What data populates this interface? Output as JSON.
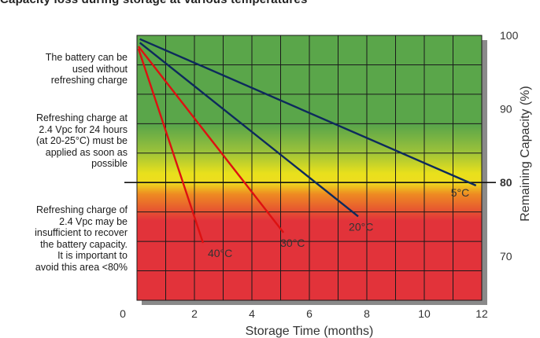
{
  "chart_data": {
    "type": "line",
    "title": "Capacity loss during storage at various temperatures",
    "xlabel": "Storage Time (months)",
    "ylabel": "Remaining Capacity (%)",
    "xlim": [
      0,
      12
    ],
    "ylim": [
      64,
      100
    ],
    "x_ticks": [
      "0",
      "2",
      "4",
      "6",
      "8",
      "10",
      "12"
    ],
    "y_ticks": [
      "70",
      "80",
      "90",
      "100"
    ],
    "grid": true,
    "threshold": {
      "value": 80,
      "label": "80"
    },
    "series": [
      {
        "name": "5°C",
        "color": "#0d2a5c",
        "x": [
          0.1,
          11.8
        ],
        "y": [
          99.5,
          79.6
        ]
      },
      {
        "name": "20°C",
        "color": "#0d2a5c",
        "x": [
          0.1,
          7.7
        ],
        "y": [
          99.0,
          75.4
        ]
      },
      {
        "name": "30°C",
        "color": "#dd1111",
        "x": [
          0.05,
          5.1
        ],
        "y": [
          98.5,
          73.2
        ]
      },
      {
        "name": "40°C",
        "color": "#dd1111",
        "x": [
          0.05,
          2.3
        ],
        "y": [
          98.2,
          71.8
        ]
      }
    ],
    "annotations": [
      "The battery can be used without refreshing charge",
      "Refreshing charge at 2.4 Vpc for 24 hours (at 20-25°C) must be applied as soon as possible",
      "Refreshing charge of 2.4 Vpc may be insufficient to recover the battery capacity. It is important to avoid this area <80%"
    ]
  },
  "notes": {
    "zone_green": [
      "The battery can be",
      "used without",
      "refreshing charge"
    ],
    "zone_yellow": [
      "Refreshing charge at",
      "2.4 Vpc for 24 hours",
      "(at 20-25°C) must be",
      "applied as soon as",
      "possible"
    ],
    "zone_red": [
      "Refreshing charge of",
      "2.4 Vpc may be",
      "insufficient to  recover",
      "the battery capacity.",
      "It is important to",
      "avoid this area <80%"
    ]
  },
  "colors": {
    "green": "#5aa64a",
    "yellow": "#e8e01c",
    "orange": "#ee8a22",
    "red": "#e2333a",
    "dark_line": "#0d2a5c",
    "red_line": "#dd1111"
  }
}
